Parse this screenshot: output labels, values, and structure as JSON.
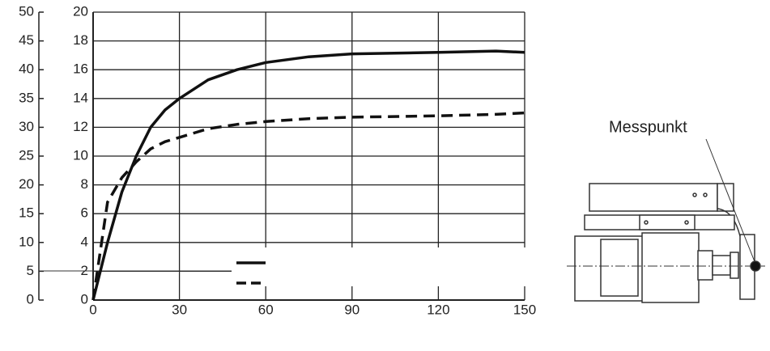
{
  "chart_data": {
    "type": "line",
    "x": [
      0,
      5,
      10,
      15,
      20,
      25,
      30,
      40,
      50,
      60,
      75,
      90,
      120,
      140,
      150
    ],
    "series": [
      {
        "color": "#111111",
        "style": "solid",
        "axis": "y2",
        "values": [
          0,
          4,
          7.5,
          10,
          12,
          13.2,
          14,
          15.3,
          16,
          16.5,
          16.9,
          17.1,
          17.2,
          17.3,
          17.2
        ]
      },
      {
        "color": "#111111",
        "style": "dashed",
        "axis": "y2",
        "values": [
          0,
          6.8,
          8.5,
          9.6,
          10.5,
          11,
          11.3,
          11.9,
          12.2,
          12.4,
          12.6,
          12.7,
          12.8,
          12.9,
          13
        ]
      }
    ],
    "xlim": [
      0,
      150
    ],
    "xticks": [
      0,
      30,
      60,
      90,
      120,
      150
    ],
    "ylim": [
      0,
      50
    ],
    "yticks": [
      0,
      5,
      10,
      15,
      20,
      25,
      30,
      35,
      40,
      45,
      50
    ],
    "y2lim": [
      0,
      20
    ],
    "y2ticks": [
      0,
      2,
      4,
      6,
      8,
      10,
      12,
      14,
      16,
      18,
      20
    ],
    "grid": true,
    "annotation": "Messpunkt"
  }
}
